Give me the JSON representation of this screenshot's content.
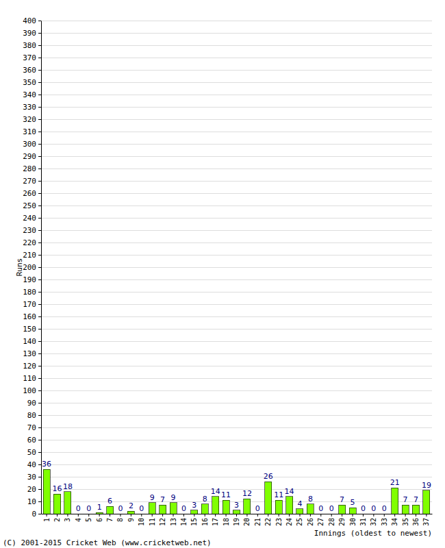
{
  "chart_data": {
    "type": "bar",
    "x_label": "Innings (oldest to newest)",
    "y_label": "Runs",
    "annotation": "(C) 2001-2015 Cricket Web (www.cricketweb.net)",
    "categories": [
      "1",
      "2",
      "3",
      "4",
      "5",
      "6",
      "7",
      "8",
      "9",
      "10",
      "11",
      "12",
      "13",
      "14",
      "15",
      "16",
      "17",
      "18",
      "19",
      "20",
      "21",
      "22",
      "23",
      "24",
      "25",
      "26",
      "27",
      "28",
      "29",
      "30",
      "31",
      "32",
      "33",
      "34",
      "35",
      "36",
      "37"
    ],
    "values": [
      36,
      16,
      18,
      0,
      0,
      1,
      6,
      0,
      2,
      0,
      9,
      7,
      9,
      0,
      3,
      8,
      14,
      11,
      3,
      12,
      0,
      26,
      11,
      14,
      4,
      8,
      0,
      0,
      7,
      5,
      0,
      0,
      0,
      21,
      7,
      7,
      19
    ],
    "color": "#80ff00",
    "ylim": [
      0,
      400
    ],
    "yticks": [
      0,
      10,
      20,
      30,
      40,
      50,
      60,
      70,
      80,
      90,
      100,
      110,
      120,
      130,
      140,
      150,
      160,
      170,
      180,
      190,
      200,
      210,
      220,
      230,
      240,
      250,
      260,
      270,
      280,
      290,
      300,
      310,
      320,
      330,
      340,
      350,
      360,
      370,
      380,
      390,
      400
    ],
    "grid": true,
    "data_labels": true
  }
}
